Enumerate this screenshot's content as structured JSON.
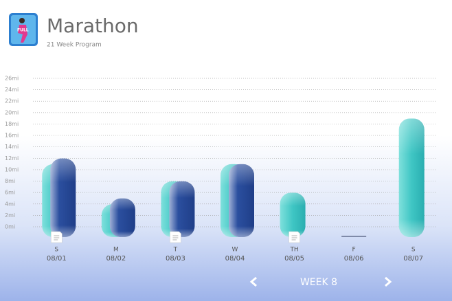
{
  "header": {
    "title": "Marathon",
    "subtitle": "21 Week Program"
  },
  "chart_data": {
    "type": "bar",
    "categories": [
      "S",
      "M",
      "T",
      "W",
      "TH",
      "F",
      "S"
    ],
    "dates": [
      "08/01",
      "08/02",
      "08/03",
      "08/04",
      "08/05",
      "08/06",
      "08/07"
    ],
    "series": [
      {
        "color": "#3fc6c4",
        "values": [
          10,
          3,
          7,
          10,
          5,
          0,
          18
        ]
      },
      {
        "color": "#2b4f9f",
        "values": [
          11,
          4,
          7,
          10,
          null,
          null,
          null
        ]
      }
    ],
    "notes": [
      true,
      false,
      true,
      false,
      true,
      false,
      false
    ],
    "ylim": [
      0,
      26
    ],
    "yticks": [
      {
        "value": 0,
        "label": "0mi"
      },
      {
        "value": 2,
        "label": "2mi"
      },
      {
        "value": 4,
        "label": "4mi"
      },
      {
        "value": 6,
        "label": "6mi"
      },
      {
        "value": 8,
        "label": "8mi"
      },
      {
        "value": 10,
        "label": "10mi"
      },
      {
        "value": 12,
        "label": "12mi"
      },
      {
        "value": 14,
        "label": "14mi"
      },
      {
        "value": 16,
        "label": "16mi"
      },
      {
        "value": 18,
        "label": "18mi"
      },
      {
        "value": 20,
        "label": "20mi"
      },
      {
        "value": 22,
        "label": "22mi"
      },
      {
        "value": 24,
        "label": "24mi"
      },
      {
        "value": 26,
        "label": "26mi"
      }
    ],
    "grid": true
  },
  "footer": {
    "week_label": "WEEK 8"
  }
}
